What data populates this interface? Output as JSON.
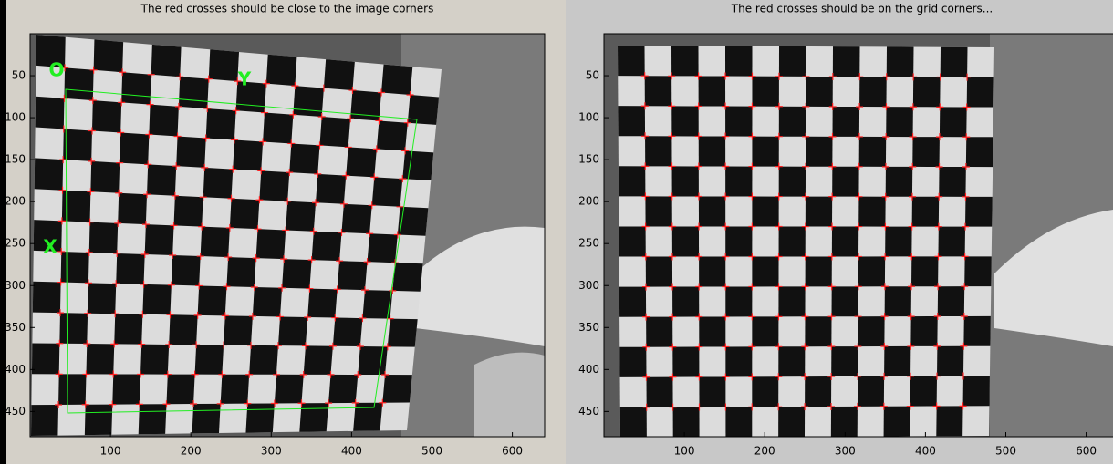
{
  "panels": [
    {
      "title": "The red crosses should be close to the image corners",
      "xticks": [
        100,
        200,
        300,
        400,
        500,
        600
      ],
      "yticks": [
        50,
        100,
        150,
        200,
        250,
        300,
        350,
        400,
        450
      ],
      "labels": {
        "origin": "O",
        "y_axis": "Y",
        "x_axis": "X"
      }
    },
    {
      "title": "The red crosses should be on the grid corners...",
      "xticks": [
        100,
        200,
        300,
        400,
        500,
        600
      ],
      "yticks": [
        50,
        100,
        150,
        200,
        250,
        300,
        350,
        400,
        450
      ]
    }
  ]
}
